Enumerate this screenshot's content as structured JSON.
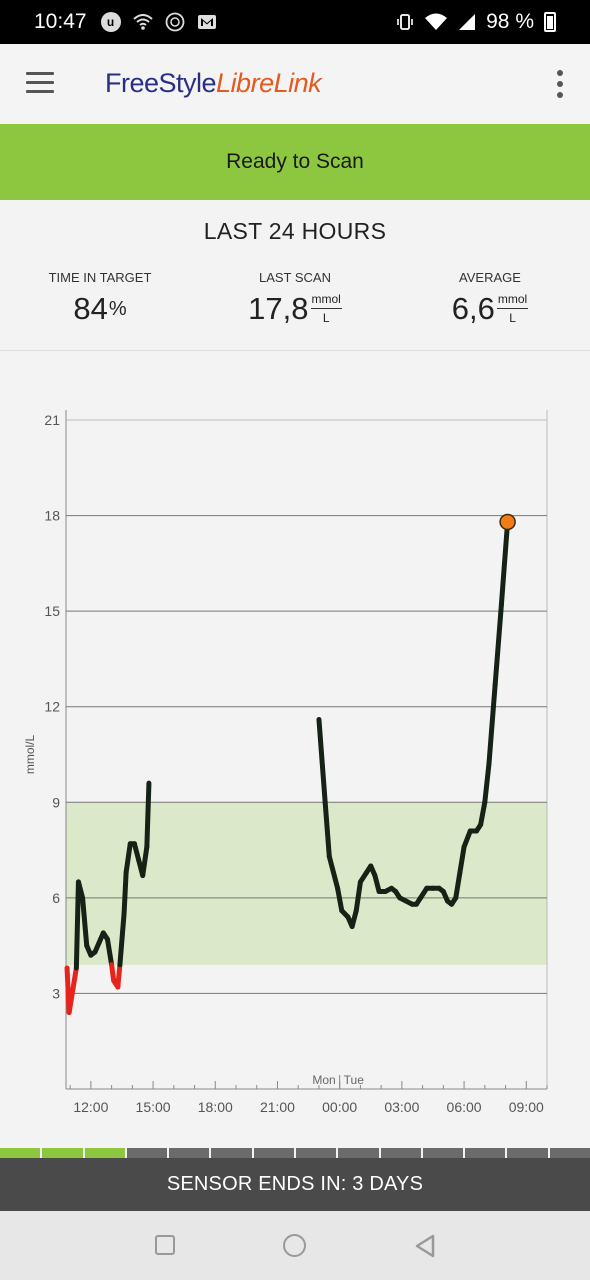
{
  "status_bar": {
    "time": "10:47",
    "battery": "98 %",
    "left_icons": [
      "u-circle-icon",
      "wifi-icon",
      "globe-icon",
      "gmail-icon"
    ],
    "right_icons": [
      "vibrate-icon",
      "wifi-icon",
      "signal-icon",
      "battery-icon"
    ]
  },
  "app_bar": {
    "logo_part1": "FreeStyle",
    "logo_part2": "LibreLink"
  },
  "scan_banner": {
    "label": "Ready to Scan"
  },
  "summary": {
    "title": "LAST 24 HOURS",
    "time_in_target": {
      "label": "TIME IN TARGET",
      "value": "84",
      "unit": "%"
    },
    "last_scan": {
      "label": "LAST SCAN",
      "value": "17,8",
      "unit_num": "mmol",
      "unit_den": "L"
    },
    "average": {
      "label": "AVERAGE",
      "value": "6,6",
      "unit_num": "mmol",
      "unit_den": "L"
    }
  },
  "colors": {
    "accent_green": "#8dc63f",
    "target_band": "#dbe8c9",
    "low_red": "#e8231c",
    "line": "#152215",
    "last_point": "#f07c15"
  },
  "chart_data": {
    "type": "line",
    "ylabel": "mmol/L",
    "ylim": [
      0,
      21
    ],
    "yticks": [
      3,
      6,
      9,
      12,
      15,
      18,
      21
    ],
    "xlim": [
      10.8,
      34.0
    ],
    "xticks": [
      {
        "v": 12,
        "label": "12:00"
      },
      {
        "v": 15,
        "label": "15:00"
      },
      {
        "v": 18,
        "label": "18:00"
      },
      {
        "v": 21,
        "label": "21:00"
      },
      {
        "v": 24,
        "label": "00:00"
      },
      {
        "v": 27,
        "label": "03:00"
      },
      {
        "v": 30,
        "label": "06:00"
      },
      {
        "v": 33,
        "label": "09:00"
      }
    ],
    "day_divider": {
      "v": 24,
      "left": "Mon",
      "right": "Tue"
    },
    "target_range": [
      3.9,
      9.0
    ],
    "low_threshold": 3.9,
    "x_units": "hours since midnight Monday",
    "segments": [
      [
        [
          10.85,
          3.8
        ],
        [
          10.95,
          2.4
        ],
        [
          11.3,
          3.8
        ],
        [
          11.4,
          6.5
        ],
        [
          11.6,
          6.0
        ],
        [
          11.8,
          4.5
        ],
        [
          12.0,
          4.2
        ],
        [
          12.2,
          4.3
        ],
        [
          12.4,
          4.6
        ],
        [
          12.6,
          4.9
        ],
        [
          12.8,
          4.7
        ],
        [
          13.0,
          3.9
        ],
        [
          13.1,
          3.4
        ],
        [
          13.3,
          3.2
        ],
        [
          13.4,
          3.9
        ],
        [
          13.6,
          5.5
        ],
        [
          13.7,
          6.8
        ],
        [
          13.9,
          7.7
        ],
        [
          14.1,
          7.7
        ],
        [
          14.3,
          7.2
        ],
        [
          14.5,
          6.7
        ],
        [
          14.7,
          7.6
        ],
        [
          14.8,
          9.6
        ]
      ],
      [
        [
          23.0,
          11.6
        ],
        [
          23.3,
          9.0
        ],
        [
          23.5,
          7.3
        ],
        [
          23.9,
          6.3
        ],
        [
          24.1,
          5.6
        ],
        [
          24.4,
          5.4
        ],
        [
          24.6,
          5.1
        ],
        [
          24.8,
          5.6
        ],
        [
          25.0,
          6.5
        ],
        [
          25.3,
          6.8
        ],
        [
          25.5,
          7.0
        ],
        [
          25.7,
          6.7
        ],
        [
          25.9,
          6.2
        ],
        [
          26.2,
          6.2
        ],
        [
          26.5,
          6.3
        ],
        [
          26.7,
          6.2
        ],
        [
          26.9,
          6.0
        ],
        [
          27.2,
          5.9
        ],
        [
          27.5,
          5.8
        ],
        [
          27.7,
          5.8
        ],
        [
          27.9,
          6.0
        ],
        [
          28.2,
          6.3
        ],
        [
          28.5,
          6.3
        ],
        [
          28.8,
          6.3
        ],
        [
          29.0,
          6.2
        ],
        [
          29.2,
          5.9
        ],
        [
          29.4,
          5.8
        ],
        [
          29.6,
          6.0
        ],
        [
          29.8,
          6.8
        ],
        [
          30.0,
          7.6
        ],
        [
          30.3,
          8.1
        ],
        [
          30.6,
          8.1
        ],
        [
          30.8,
          8.3
        ],
        [
          31.0,
          9.0
        ],
        [
          31.2,
          10.2
        ],
        [
          31.5,
          12.7
        ],
        [
          31.8,
          15.2
        ],
        [
          32.1,
          17.8
        ]
      ]
    ],
    "last_scan": {
      "x": 32.1,
      "y": 17.8
    },
    "grid": true
  },
  "sensor": {
    "label": "SENSOR ENDS IN: 3 DAYS",
    "segments_total": 14,
    "segments_filled": 3
  },
  "nav": {
    "items": [
      "recents-icon",
      "home-icon",
      "back-icon"
    ]
  }
}
